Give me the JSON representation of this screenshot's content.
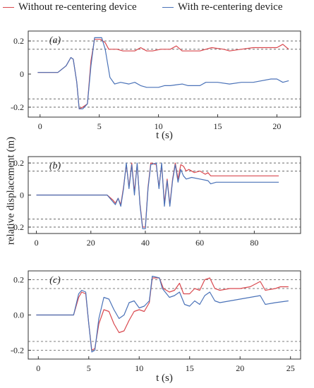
{
  "legend": {
    "without": {
      "label": "Without re-centering device",
      "color": "#d9484e"
    },
    "with": {
      "label": "With re-centering device",
      "color": "#4a72b8"
    }
  },
  "ylabel": "relative displacement (m)",
  "chart_data": [
    {
      "type": "line",
      "panel_label": "(a)",
      "xlabel": "t (s)",
      "ylabel": "relative displacement (m)",
      "xlim": [
        -1,
        22
      ],
      "ylim": [
        -0.26,
        0.26
      ],
      "xticks": [
        0,
        5,
        10,
        15,
        20
      ],
      "xtick_labels": [
        "0",
        "5",
        "10",
        "15",
        "20"
      ],
      "yticks": [
        -0.2,
        0,
        0.2
      ],
      "ytick_labels": [
        "-0.2",
        "0",
        "0.2"
      ],
      "grid": "dashed horizontal",
      "series": [
        {
          "name": "Without re-centering device",
          "color": "#d9484e",
          "points": [
            [
              -0.2,
              0.01
            ],
            [
              1.5,
              0.01
            ],
            [
              2.2,
              0.05
            ],
            [
              2.6,
              0.1
            ],
            [
              2.8,
              0.09
            ],
            [
              3.1,
              -0.05
            ],
            [
              3.3,
              -0.21
            ],
            [
              3.6,
              -0.2
            ],
            [
              4.0,
              -0.18
            ],
            [
              4.3,
              0.08
            ],
            [
              4.6,
              0.21
            ],
            [
              5.1,
              0.21
            ],
            [
              5.5,
              0.19
            ],
            [
              5.8,
              0.15
            ],
            [
              6.5,
              0.15
            ],
            [
              7.0,
              0.14
            ],
            [
              8.0,
              0.14
            ],
            [
              8.5,
              0.16
            ],
            [
              9.0,
              0.14
            ],
            [
              9.5,
              0.14
            ],
            [
              10.2,
              0.15
            ],
            [
              11.0,
              0.15
            ],
            [
              11.5,
              0.17
            ],
            [
              12.0,
              0.14
            ],
            [
              13.5,
              0.14
            ],
            [
              14.5,
              0.16
            ],
            [
              15.5,
              0.15
            ],
            [
              16.0,
              0.14
            ],
            [
              17.0,
              0.15
            ],
            [
              18.0,
              0.16
            ],
            [
              19.0,
              0.16
            ],
            [
              20.0,
              0.16
            ],
            [
              20.5,
              0.18
            ],
            [
              21.0,
              0.15
            ]
          ]
        },
        {
          "name": "With re-centering device",
          "color": "#4a72b8",
          "points": [
            [
              -0.2,
              0.01
            ],
            [
              1.5,
              0.01
            ],
            [
              2.2,
              0.05
            ],
            [
              2.6,
              0.1
            ],
            [
              2.8,
              0.09
            ],
            [
              3.1,
              -0.05
            ],
            [
              3.3,
              -0.21
            ],
            [
              3.6,
              -0.21
            ],
            [
              4.0,
              -0.18
            ],
            [
              4.3,
              0.05
            ],
            [
              4.6,
              0.22
            ],
            [
              5.2,
              0.22
            ],
            [
              5.5,
              0.15
            ],
            [
              5.9,
              -0.02
            ],
            [
              6.3,
              -0.06
            ],
            [
              6.8,
              -0.05
            ],
            [
              7.5,
              -0.06
            ],
            [
              8.0,
              -0.05
            ],
            [
              8.5,
              -0.07
            ],
            [
              9.0,
              -0.08
            ],
            [
              10.0,
              -0.08
            ],
            [
              10.5,
              -0.07
            ],
            [
              11.0,
              -0.07
            ],
            [
              12.0,
              -0.06
            ],
            [
              12.5,
              -0.07
            ],
            [
              13.5,
              -0.07
            ],
            [
              14.0,
              -0.05
            ],
            [
              15.0,
              -0.05
            ],
            [
              16.0,
              -0.06
            ],
            [
              17.0,
              -0.05
            ],
            [
              18.0,
              -0.05
            ],
            [
              19.5,
              -0.03
            ],
            [
              20.0,
              -0.03
            ],
            [
              20.5,
              -0.05
            ],
            [
              21.0,
              -0.04
            ]
          ]
        }
      ]
    },
    {
      "type": "line",
      "panel_label": "(b)",
      "xlabel": "",
      "ylabel": "relative displacement (m)",
      "xlim": [
        -3,
        97
      ],
      "ylim": [
        -0.24,
        0.24
      ],
      "xticks": [
        0,
        20,
        40,
        60,
        80
      ],
      "xtick_labels": [
        "0",
        "20",
        "40",
        "60",
        "80"
      ],
      "yticks": [
        -0.2,
        0,
        0.2
      ],
      "ytick_labels": [
        "-0.2",
        "0",
        "0.2"
      ],
      "grid": "dashed horizontal",
      "series": [
        {
          "name": "Without re-centering device",
          "color": "#d9484e",
          "points": [
            [
              0,
              0
            ],
            [
              26,
              0
            ],
            [
              28,
              -0.03
            ],
            [
              29,
              -0.05
            ],
            [
              30,
              -0.02
            ],
            [
              31,
              -0.06
            ],
            [
              32,
              0.05
            ],
            [
              33,
              0.19
            ],
            [
              34,
              0.05
            ],
            [
              35,
              0.2
            ],
            [
              36,
              0.02
            ],
            [
              37,
              0.19
            ],
            [
              38,
              -0.05
            ],
            [
              39,
              -0.2
            ],
            [
              40,
              -0.2
            ],
            [
              41,
              0.05
            ],
            [
              42,
              0.2
            ],
            [
              44,
              0.19
            ],
            [
              45,
              0.05
            ],
            [
              46,
              0.19
            ],
            [
              47,
              -0.05
            ],
            [
              48,
              0.1
            ],
            [
              49,
              -0.06
            ],
            [
              50,
              0.1
            ],
            [
              51,
              0.2
            ],
            [
              52,
              0.1
            ],
            [
              53,
              0.19
            ],
            [
              54,
              0.18
            ],
            [
              55,
              0.15
            ],
            [
              56,
              0.16
            ],
            [
              58,
              0.14
            ],
            [
              60,
              0.15
            ],
            [
              62,
              0.13
            ],
            [
              63,
              0.14
            ],
            [
              64,
              0.12
            ],
            [
              66,
              0.12
            ],
            [
              70,
              0.12
            ],
            [
              80,
              0.12
            ],
            [
              89,
              0.12
            ]
          ]
        },
        {
          "name": "With re-centering device",
          "color": "#4a72b8",
          "points": [
            [
              0,
              0
            ],
            [
              26,
              0
            ],
            [
              28,
              -0.04
            ],
            [
              29,
              -0.06
            ],
            [
              30,
              -0.02
            ],
            [
              31,
              -0.07
            ],
            [
              32,
              0.04
            ],
            [
              33,
              0.2
            ],
            [
              34,
              0.04
            ],
            [
              35,
              0.19
            ],
            [
              36,
              0.0
            ],
            [
              37,
              0.2
            ],
            [
              38,
              -0.06
            ],
            [
              39,
              -0.21
            ],
            [
              40,
              -0.21
            ],
            [
              41,
              0.04
            ],
            [
              42,
              0.19
            ],
            [
              44,
              0.2
            ],
            [
              45,
              0.04
            ],
            [
              46,
              0.2
            ],
            [
              47,
              -0.07
            ],
            [
              48,
              0.09
            ],
            [
              49,
              -0.07
            ],
            [
              50,
              0.09
            ],
            [
              51,
              0.19
            ],
            [
              52,
              0.08
            ],
            [
              53,
              0.16
            ],
            [
              54,
              0.12
            ],
            [
              55,
              0.1
            ],
            [
              57,
              0.11
            ],
            [
              60,
              0.1
            ],
            [
              63,
              0.09
            ],
            [
              64,
              0.07
            ],
            [
              66,
              0.08
            ],
            [
              70,
              0.08
            ],
            [
              80,
              0.08
            ],
            [
              89,
              0.08
            ]
          ]
        }
      ]
    },
    {
      "type": "line",
      "panel_label": "(c)",
      "xlabel": "t (s)",
      "ylabel": "relative displacement (m)",
      "xlim": [
        -1,
        26
      ],
      "ylim": [
        -0.25,
        0.25
      ],
      "xticks": [
        0,
        5,
        10,
        15,
        20,
        25
      ],
      "xtick_labels": [
        "0",
        "5",
        "10",
        "15",
        "20",
        "25"
      ],
      "yticks": [
        -0.2,
        0.0,
        0.2
      ],
      "ytick_labels": [
        "-0.2",
        "0.0",
        "0.2"
      ],
      "grid": "dashed horizontal",
      "series": [
        {
          "name": "Without re-centering device",
          "color": "#d9484e",
          "points": [
            [
              -0.2,
              0.0
            ],
            [
              3.5,
              0.0
            ],
            [
              4.0,
              0.1
            ],
            [
              4.3,
              0.13
            ],
            [
              4.7,
              0.12
            ],
            [
              5.0,
              -0.05
            ],
            [
              5.3,
              -0.2
            ],
            [
              5.6,
              -0.19
            ],
            [
              6.0,
              -0.05
            ],
            [
              6.5,
              0.03
            ],
            [
              7.0,
              0.02
            ],
            [
              7.5,
              -0.05
            ],
            [
              8.0,
              -0.1
            ],
            [
              8.5,
              -0.09
            ],
            [
              9.0,
              -0.03
            ],
            [
              9.5,
              0.02
            ],
            [
              10.0,
              0.03
            ],
            [
              10.5,
              0.02
            ],
            [
              11.0,
              0.07
            ],
            [
              11.3,
              0.21
            ],
            [
              12.0,
              0.21
            ],
            [
              12.4,
              0.15
            ],
            [
              13.0,
              0.13
            ],
            [
              13.5,
              0.14
            ],
            [
              14.0,
              0.18
            ],
            [
              14.4,
              0.12
            ],
            [
              15.0,
              0.12
            ],
            [
              15.5,
              0.15
            ],
            [
              16.0,
              0.14
            ],
            [
              16.5,
              0.2
            ],
            [
              17.0,
              0.21
            ],
            [
              17.5,
              0.15
            ],
            [
              18.0,
              0.14
            ],
            [
              19.0,
              0.15
            ],
            [
              20.0,
              0.15
            ],
            [
              21.0,
              0.16
            ],
            [
              22.0,
              0.19
            ],
            [
              22.5,
              0.14
            ],
            [
              23.5,
              0.15
            ],
            [
              24.0,
              0.16
            ],
            [
              24.8,
              0.16
            ]
          ]
        },
        {
          "name": "With re-centering device",
          "color": "#4a72b8",
          "points": [
            [
              -0.2,
              0.0
            ],
            [
              3.5,
              0.0
            ],
            [
              4.0,
              0.12
            ],
            [
              4.3,
              0.14
            ],
            [
              4.7,
              0.13
            ],
            [
              5.0,
              -0.05
            ],
            [
              5.3,
              -0.21
            ],
            [
              5.6,
              -0.2
            ],
            [
              6.0,
              -0.02
            ],
            [
              6.5,
              0.1
            ],
            [
              7.0,
              0.09
            ],
            [
              7.5,
              0.03
            ],
            [
              8.0,
              -0.02
            ],
            [
              8.5,
              0.0
            ],
            [
              9.0,
              0.07
            ],
            [
              9.5,
              0.08
            ],
            [
              10.0,
              0.04
            ],
            [
              10.5,
              0.05
            ],
            [
              11.0,
              0.08
            ],
            [
              11.3,
              0.22
            ],
            [
              12.0,
              0.21
            ],
            [
              12.3,
              0.15
            ],
            [
              13.0,
              0.1
            ],
            [
              13.5,
              0.11
            ],
            [
              14.0,
              0.13
            ],
            [
              14.5,
              0.06
            ],
            [
              15.0,
              0.05
            ],
            [
              15.5,
              0.08
            ],
            [
              16.0,
              0.06
            ],
            [
              16.5,
              0.11
            ],
            [
              17.0,
              0.13
            ],
            [
              17.5,
              0.08
            ],
            [
              18.0,
              0.07
            ],
            [
              19.0,
              0.08
            ],
            [
              20.0,
              0.09
            ],
            [
              21.0,
              0.1
            ],
            [
              22.0,
              0.11
            ],
            [
              22.5,
              0.06
            ],
            [
              23.5,
              0.07
            ],
            [
              24.8,
              0.08
            ]
          ]
        }
      ]
    }
  ]
}
